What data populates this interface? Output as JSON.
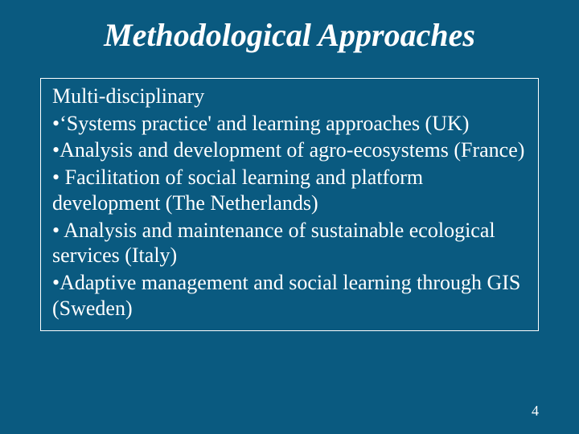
{
  "slide": {
    "background_color": "#0a5a80",
    "text_color": "#ffffff",
    "border_color": "#ffffff",
    "title": "Methodological Approaches",
    "title_fontsize": 40,
    "subheading": "Multi-disciplinary",
    "body_fontsize": 26,
    "line_height": 1.22,
    "bullets": [
      "•‘Systems practice' and learning approaches (UK)",
      "•Analysis and development of agro-ecosystems (France)",
      "• Facilitation of social learning and platform development (The Netherlands)",
      "• Analysis and maintenance of sustainable ecological services (Italy)",
      "•Adaptive management and social learning through GIS (Sweden)"
    ],
    "page_number": "4",
    "page_number_fontsize": 18
  }
}
